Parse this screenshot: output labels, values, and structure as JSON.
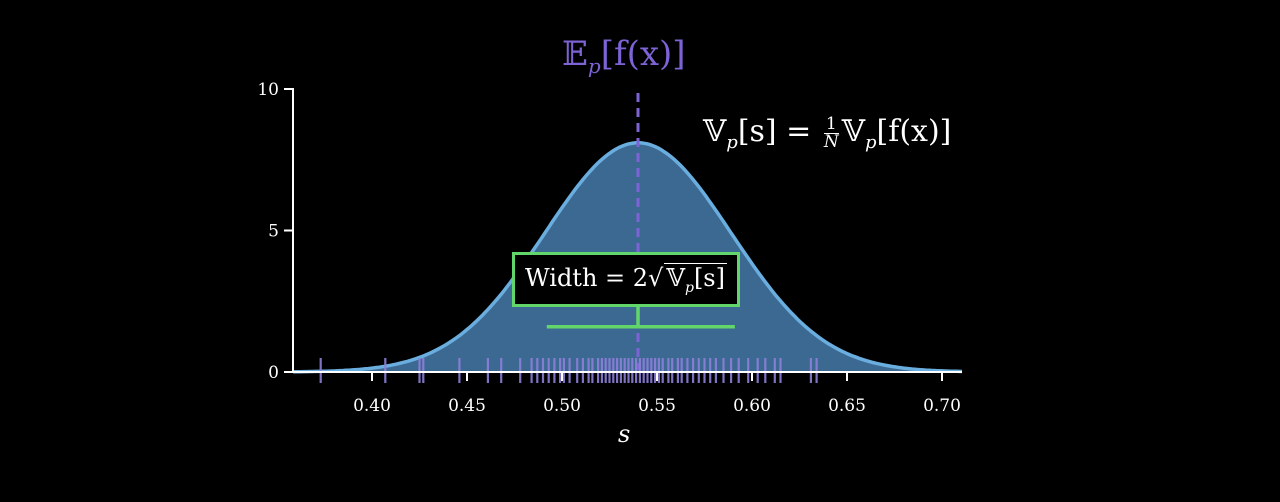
{
  "chart_data": {
    "type": "area",
    "title": "",
    "xlabel": "s",
    "ylabel": "",
    "xlim": [
      0.36,
      0.72
    ],
    "ylim": [
      0,
      10
    ],
    "x_ticks": [
      "0.40",
      "0.45",
      "0.50",
      "0.55",
      "0.60",
      "0.65",
      "0.70"
    ],
    "y_ticks": [
      "0",
      "5",
      "10"
    ],
    "series": [
      {
        "kind": "normal_density",
        "mean": 0.54,
        "std": 0.049,
        "peak": 8.1,
        "fill_color": "#3f6f9a",
        "line_color": "#6aaee0"
      }
    ],
    "samples": [
      0.373,
      0.407,
      0.425,
      0.427,
      0.446,
      0.461,
      0.468,
      0.478,
      0.484,
      0.487,
      0.49,
      0.493,
      0.496,
      0.499,
      0.501,
      0.504,
      0.508,
      0.511,
      0.514,
      0.516,
      0.519,
      0.521,
      0.523,
      0.525,
      0.527,
      0.529,
      0.531,
      0.533,
      0.535,
      0.537,
      0.539,
      0.541,
      0.543,
      0.545,
      0.547,
      0.549,
      0.551,
      0.553,
      0.556,
      0.558,
      0.561,
      0.563,
      0.566,
      0.569,
      0.572,
      0.575,
      0.578,
      0.581,
      0.585,
      0.589,
      0.593,
      0.598,
      0.603,
      0.607,
      0.612,
      0.615,
      0.631,
      0.634
    ],
    "sample_color": "#8c80d8",
    "mean_line": {
      "x": 0.54,
      "color": "#7d63d6"
    },
    "width_bracket": {
      "x_start": 0.492,
      "x_end": 0.591,
      "y": 1.6,
      "color": "#63d66b"
    },
    "annotations": {
      "mean": "𝔼p[f(x)]",
      "variance": "𝕍p[s] = 1/N 𝕍p[f(x)]",
      "width": "Width = 2√𝕍p[s]"
    }
  },
  "labels": {
    "mean_main": "𝔼",
    "mean_sub": "p",
    "mean_rest": "[f(x)]",
    "var_main": "𝕍",
    "var_sub": "p",
    "var_mid": "[s] = ",
    "var_num": "1",
    "var_den": "N",
    "var_main2": "𝕍",
    "var_sub2": "p",
    "var_rest": "[f(x)]",
    "width_prefix": "Width = 2",
    "width_v": "𝕍",
    "width_sub": "p",
    "width_rest": "[s]",
    "x_axis": "s"
  }
}
